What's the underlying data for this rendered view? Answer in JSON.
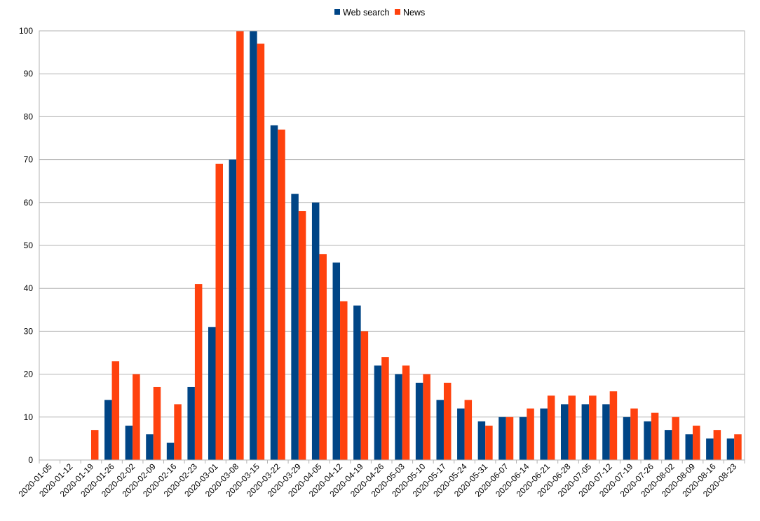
{
  "chart_data": {
    "type": "bar",
    "title": "",
    "xlabel": "",
    "ylabel": "",
    "ylim": [
      0,
      100
    ],
    "yticks": [
      0,
      10,
      20,
      30,
      40,
      50,
      60,
      70,
      80,
      90,
      100
    ],
    "grid": "horizontal",
    "legend_position": "top-center",
    "categories": [
      "2020-01-05",
      "2020-01-12",
      "2020-01-19",
      "2020-01-26",
      "2020-02-02",
      "2020-02-09",
      "2020-02-16",
      "2020-02-23",
      "2020-03-01",
      "2020-03-08",
      "2020-03-15",
      "2020-03-22",
      "2020-03-29",
      "2020-04-05",
      "2020-04-12",
      "2020-04-19",
      "2020-04-26",
      "2020-05-03",
      "2020-05-10",
      "2020-05-17",
      "2020-05-24",
      "2020-05-31",
      "2020-06-07",
      "2020-06-14",
      "2020-06-21",
      "2020-06-28",
      "2020-07-05",
      "2020-07-12",
      "2020-07-19",
      "2020-07-26",
      "2020-08-02",
      "2020-08-09",
      "2020-08-16",
      "2020-08-23"
    ],
    "series": [
      {
        "name": "Web search",
        "color": "#004586",
        "values": [
          0,
          0,
          0,
          14,
          8,
          6,
          4,
          17,
          31,
          70,
          100,
          78,
          62,
          60,
          46,
          36,
          22,
          20,
          18,
          14,
          12,
          9,
          10,
          10,
          12,
          13,
          13,
          13,
          10,
          9,
          7,
          6,
          5,
          5
        ]
      },
      {
        "name": "News",
        "color": "#ff420e",
        "values": [
          0,
          0,
          7,
          23,
          20,
          17,
          13,
          41,
          69,
          100,
          97,
          77,
          58,
          48,
          37,
          30,
          24,
          22,
          20,
          18,
          14,
          8,
          10,
          12,
          15,
          15,
          15,
          16,
          12,
          11,
          10,
          8,
          7,
          6
        ]
      }
    ]
  }
}
